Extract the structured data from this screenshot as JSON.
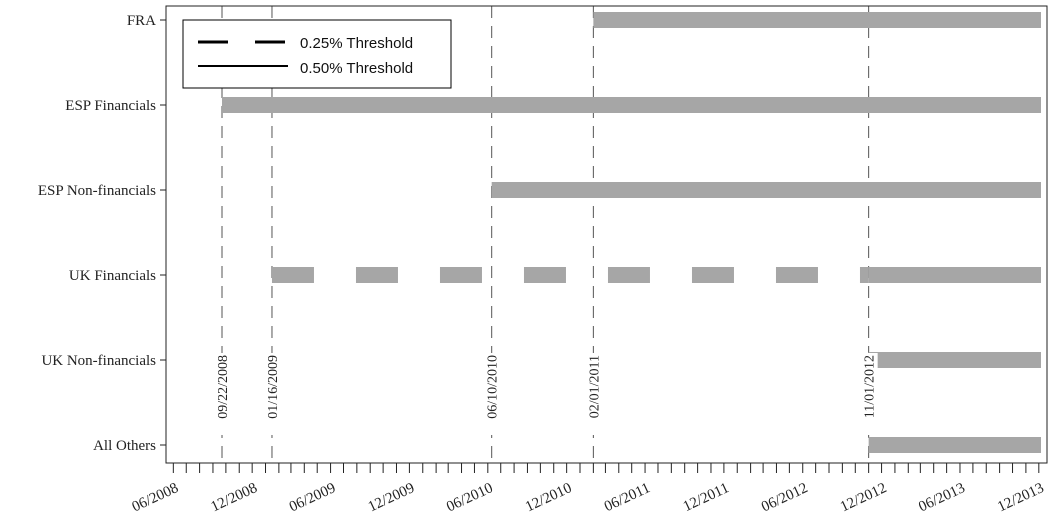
{
  "colors": {
    "bar": "#a6a6a6",
    "axis": "#222222",
    "vline": "#555555",
    "legend_line": "#000000"
  },
  "legend": {
    "items": [
      {
        "label": "0.25% Threshold",
        "style": "dashed"
      },
      {
        "label": "0.50% Threshold",
        "style": "solid"
      }
    ],
    "position": "top-left"
  },
  "chart_data": {
    "type": "timeline",
    "title": "",
    "xlabel": "",
    "ylabel": "",
    "x_range": [
      "2008-05-15",
      "2013-12-20"
    ],
    "x_tick_labels": [
      {
        "date": "2008-06-01",
        "label": "06/2008"
      },
      {
        "date": "2008-12-01",
        "label": "12/2008"
      },
      {
        "date": "2009-06-01",
        "label": "06/2009"
      },
      {
        "date": "2009-12-01",
        "label": "12/2009"
      },
      {
        "date": "2010-06-01",
        "label": "06/2010"
      },
      {
        "date": "2010-12-01",
        "label": "12/2010"
      },
      {
        "date": "2011-06-01",
        "label": "06/2011"
      },
      {
        "date": "2011-12-01",
        "label": "12/2011"
      },
      {
        "date": "2012-06-01",
        "label": "06/2012"
      },
      {
        "date": "2012-12-01",
        "label": "12/2012"
      },
      {
        "date": "2013-06-01",
        "label": "06/2013"
      },
      {
        "date": "2013-12-01",
        "label": "12/2013"
      }
    ],
    "categories": [
      "FRA",
      "ESP Financials",
      "ESP Non-financials",
      "UK Financials",
      "UK Non-financials",
      "All Others"
    ],
    "series": [
      {
        "category": "FRA",
        "segments": [
          {
            "start": "2011-02-01",
            "end": "2013-12-15",
            "style": "solid"
          }
        ]
      },
      {
        "category": "ESP Financials",
        "segments": [
          {
            "start": "2008-09-22",
            "end": "2013-12-15",
            "style": "solid"
          }
        ]
      },
      {
        "category": "ESP Non-financials",
        "segments": [
          {
            "start": "2010-06-10",
            "end": "2013-12-15",
            "style": "solid"
          }
        ]
      },
      {
        "category": "UK Financials",
        "segments": [
          {
            "start": "2009-01-16",
            "end": "2012-11-01",
            "style": "dashed"
          },
          {
            "start": "2012-11-01",
            "end": "2013-12-15",
            "style": "solid"
          }
        ]
      },
      {
        "category": "UK Non-financials",
        "segments": [
          {
            "start": "2012-11-01",
            "end": "2013-12-15",
            "style": "solid"
          }
        ]
      },
      {
        "category": "All Others",
        "segments": [
          {
            "start": "2012-11-01",
            "end": "2013-12-15",
            "style": "solid"
          }
        ]
      }
    ],
    "event_lines": [
      {
        "date": "2008-09-22",
        "label": "09/22/2008"
      },
      {
        "date": "2009-01-16",
        "label": "01/16/2009"
      },
      {
        "date": "2010-06-10",
        "label": "06/10/2010"
      },
      {
        "date": "2011-02-01",
        "label": "02/01/2011"
      },
      {
        "date": "2012-11-01",
        "label": "11/01/2012"
      }
    ],
    "grid": false
  }
}
